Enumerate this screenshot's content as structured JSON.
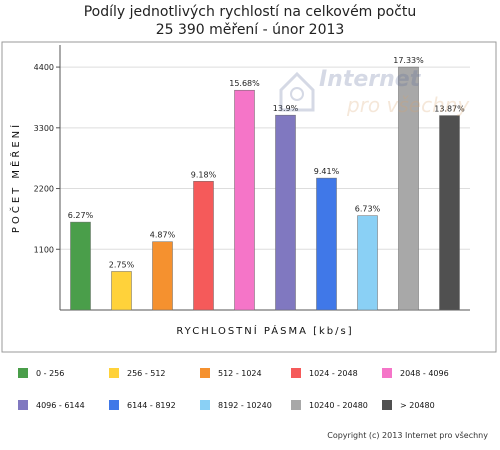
{
  "title_line1": "Podíly jednotlivých rychlostí na celkovém počtu",
  "title_line2": "25 390 měření - únor 2013",
  "watermark": "Internet pro všechny",
  "copyright": "Copyright (c) 2013 Internet pro všechny",
  "chart_data": {
    "type": "bar",
    "title": "Podíly jednotlivých rychlostí na celkovém počtu",
    "subtitle": "25 390 měření - únor 2013",
    "xlabel": "RYCHLOSTNÍ PÁSMA [kb/s]",
    "ylabel": "POČET MĚŘENÍ",
    "ylim": [
      0,
      4800
    ],
    "yticks": [
      1100,
      2200,
      3300,
      4400
    ],
    "categories": [
      "0 - 256",
      "256 - 512",
      "512 - 1024",
      "1024 - 2048",
      "2048 - 4096",
      "4096 - 6144",
      "6144 - 8192",
      "8192 - 10240",
      "10240 - 20480",
      "> 20480"
    ],
    "values": [
      1592,
      698,
      1237,
      2331,
      3981,
      3529,
      2389,
      1709,
      4400,
      3522
    ],
    "labels": [
      "6.27%",
      "2.75%",
      "4.87%",
      "9.18%",
      "15.68%",
      "13.9%",
      "9.41%",
      "6.73%",
      "17.33%",
      "13.87%"
    ],
    "colors": [
      "#4a9e4a",
      "#ffd23a",
      "#f5912f",
      "#f55a5a",
      "#f575c8",
      "#8078c0",
      "#4078e8",
      "#8ad0f5",
      "#a8a8a8",
      "#505050"
    ],
    "grid": true,
    "legend": "bottom"
  }
}
